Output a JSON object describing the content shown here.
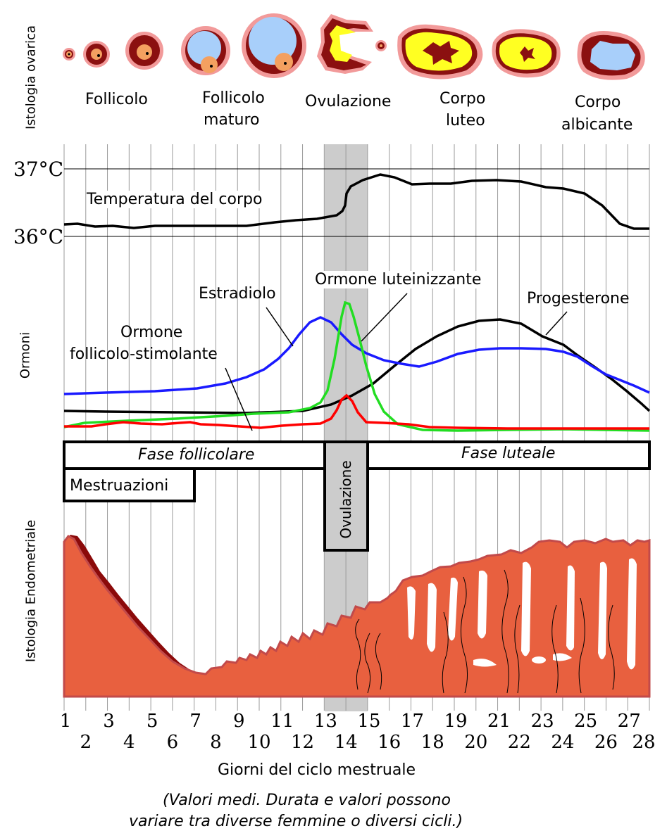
{
  "side_labels": {
    "ovarian": "Istologia ovarica",
    "hormones": "Ormoni",
    "endometrial": "Istologia Endometriale"
  },
  "ovary_labels": {
    "follicle": "Follicolo",
    "mature_1": "Follicolo",
    "mature_2": "maturo",
    "ovulation": "Ovulazione",
    "luteum_1": "Corpo",
    "luteum_2": "luteo",
    "albicans_1": "Corpo",
    "albicans_2": "albicante"
  },
  "temperature": {
    "label_high": "37°C",
    "label_low": "36°C",
    "curve_label": "Temperatura del corpo"
  },
  "hormone_labels": {
    "estradiol": "Estradiolo",
    "lh": "Ormone luteinizzante",
    "progesterone": "Progesterone",
    "fsh_1": "Ormone",
    "fsh_2": "follicolo-stimolante"
  },
  "phases": {
    "follicular": "Fase follicolare",
    "luteal": "Fase luteale",
    "menstruation": "Mestruazioni",
    "ovulation": "Ovulazione"
  },
  "x_axis": {
    "label": "Giorni del ciclo mestruale",
    "days_odd": [
      "1",
      "3",
      "5",
      "7",
      "9",
      "11",
      "13",
      "15",
      "17",
      "19",
      "21",
      "23",
      "25",
      "27"
    ],
    "days_even": [
      "2",
      "4",
      "6",
      "8",
      "10",
      "12",
      "14",
      "16",
      "18",
      "20",
      "22",
      "24",
      "26",
      "28"
    ]
  },
  "footnote": {
    "line1": "(Valori medi. Durata e valori possono",
    "line2": "variare tra diverse femmine o diversi cicli.)"
  },
  "colors": {
    "estradiol": "#1a1aff",
    "lh": "#22dd22",
    "progesterone": "#000000",
    "fsh": "#ff0000",
    "ovulation_band": "#cccccc",
    "endometrium": "#e8603f",
    "endometrium_dark": "#8b0a0a"
  }
}
